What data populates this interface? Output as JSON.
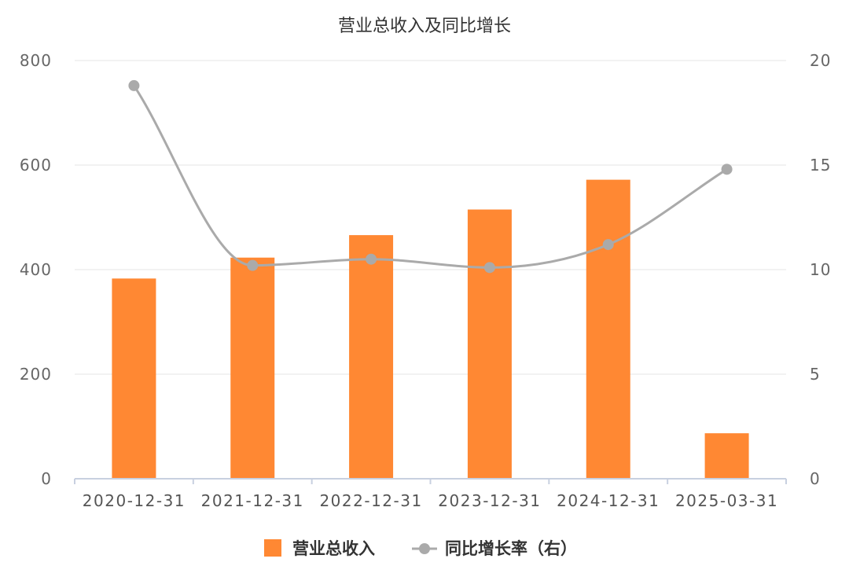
{
  "chart_data": {
    "type": "bar",
    "title": "营业总收入及同比增长",
    "categories": [
      "2020-12-31",
      "2021-12-31",
      "2022-12-31",
      "2023-12-31",
      "2024-12-31",
      "2025-03-31"
    ],
    "series": [
      {
        "name": "营业总收入",
        "type": "bar",
        "axis": "left",
        "color": "#FF8833",
        "values": [
          383,
          423,
          466,
          515,
          572,
          87
        ]
      },
      {
        "name": "同比增长率（右）",
        "type": "line",
        "axis": "right",
        "color": "#AAAAAA",
        "values": [
          18.8,
          10.2,
          10.5,
          10.1,
          11.2,
          14.8
        ]
      }
    ],
    "y_left": {
      "ylim": [
        0,
        800
      ],
      "ticks": [
        "0",
        "200",
        "400",
        "600",
        "800"
      ]
    },
    "y_right": {
      "ylim": [
        0,
        20
      ],
      "ticks": [
        "0",
        "5",
        "10",
        "15",
        "20"
      ]
    },
    "grid": true,
    "legend": "bottom"
  }
}
